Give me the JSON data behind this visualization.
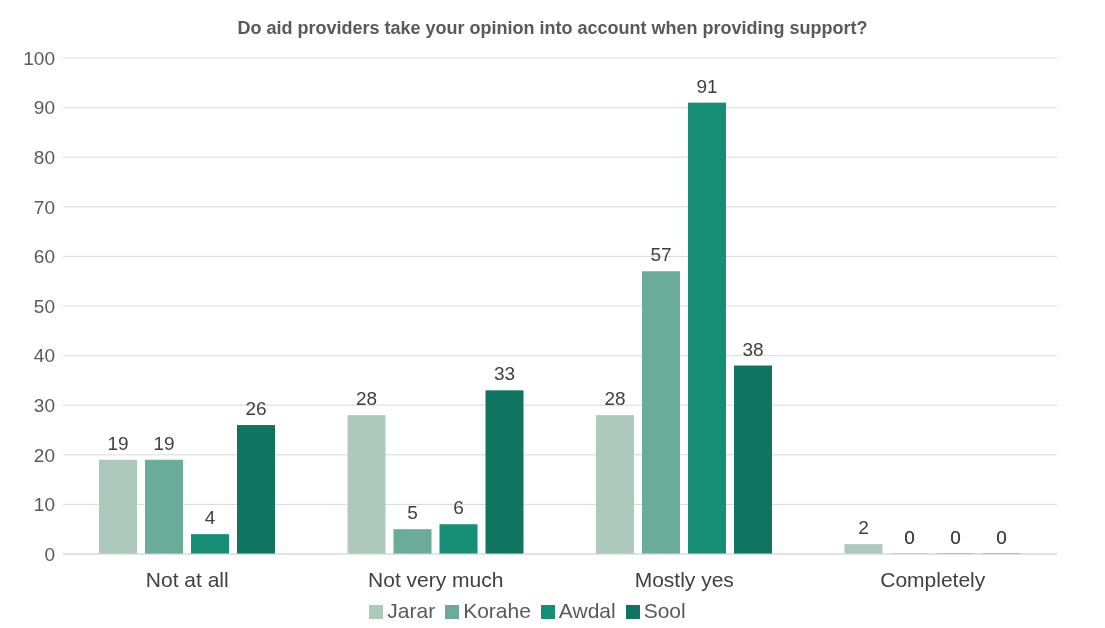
{
  "chart_data": {
    "type": "bar",
    "title": "Do aid providers take your opinion into account when providing support?",
    "categories": [
      "Not at all",
      "Not very much",
      "Mostly yes",
      "Completely"
    ],
    "series": [
      {
        "name": "Jarar",
        "color": "#adc9be",
        "values": [
          19,
          28,
          28,
          2
        ]
      },
      {
        "name": "Korahe",
        "color": "#6aab99",
        "values": [
          19,
          5,
          57,
          0
        ]
      },
      {
        "name": "Awdal",
        "color": "#168f76",
        "values": [
          4,
          6,
          91,
          0
        ]
      },
      {
        "name": "Sool",
        "color": "#0f7560",
        "values": [
          26,
          33,
          38,
          0
        ]
      }
    ],
    "ylim": [
      0,
      100
    ],
    "yticks": [
      0,
      10,
      20,
      30,
      40,
      50,
      60,
      70,
      80,
      90,
      100
    ],
    "grid": "y",
    "legend": "bottom",
    "data_labels": true
  }
}
